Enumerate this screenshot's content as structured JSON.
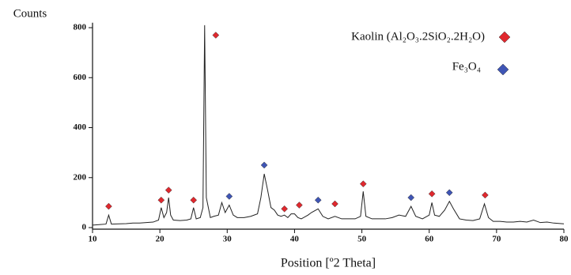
{
  "chart_data": {
    "type": "line",
    "y_label": "Counts",
    "x_label": "Position [º2 Theta]",
    "xlim": [
      10,
      80
    ],
    "xticks": [
      10,
      20,
      30,
      40,
      50,
      60,
      70,
      80
    ],
    "ylim": [
      0,
      820
    ],
    "yticks": [
      0,
      200,
      400,
      600,
      800
    ],
    "color": "#222222",
    "x": [
      10,
      11,
      12,
      12.4,
      12.8,
      14,
      15,
      16,
      17,
      18,
      19,
      19.8,
      20.2,
      20.6,
      21,
      21.3,
      21.6,
      22,
      23,
      24,
      24.6,
      25,
      25.4,
      26,
      26.4,
      26.65,
      26.9,
      27.5,
      28,
      28.7,
      29.2,
      29.7,
      30.3,
      30.9,
      31.5,
      32.5,
      33.5,
      34.5,
      35,
      35.5,
      36,
      36.5,
      37,
      37.5,
      38,
      38.5,
      39,
      39.5,
      40,
      40.5,
      41,
      42,
      42.5,
      43.5,
      44.2,
      45,
      46,
      47,
      48,
      49,
      49.8,
      50.2,
      50.6,
      51.5,
      52.5,
      53.5,
      54.5,
      55.5,
      56.5,
      57.3,
      58,
      59,
      60,
      60.4,
      60.8,
      61.5,
      62.3,
      63,
      63.6,
      64.5,
      65.5,
      66.5,
      67.5,
      68.2,
      68.8,
      69.5,
      70.5,
      71.5,
      72.5,
      73.5,
      74.5,
      75.5,
      76.5,
      77.5,
      78.5,
      80
    ],
    "values": [
      10,
      12,
      14,
      50,
      14,
      15,
      16,
      18,
      18,
      20,
      22,
      30,
      80,
      40,
      60,
      120,
      50,
      30,
      28,
      30,
      35,
      80,
      35,
      40,
      80,
      810,
      120,
      40,
      45,
      50,
      100,
      60,
      90,
      50,
      40,
      40,
      45,
      55,
      120,
      215,
      150,
      80,
      70,
      50,
      45,
      50,
      40,
      55,
      55,
      40,
      35,
      50,
      60,
      75,
      45,
      35,
      45,
      35,
      35,
      35,
      45,
      145,
      45,
      35,
      35,
      35,
      40,
      50,
      45,
      85,
      45,
      35,
      50,
      100,
      50,
      45,
      70,
      105,
      75,
      35,
      30,
      28,
      35,
      95,
      40,
      25,
      25,
      22,
      22,
      25,
      22,
      30,
      20,
      22,
      18,
      15
    ],
    "series": [
      {
        "name": "Kaolin (Al₂O₃.2SiO₂.2H₂O)",
        "color": "#e0282e",
        "x": [
          12.4,
          20.2,
          21.3,
          25,
          28.3,
          38.5,
          40.7,
          46,
          50.2,
          60.4,
          68.3
        ],
        "values": [
          85,
          110,
          150,
          110,
          770,
          75,
          90,
          95,
          175,
          135,
          130
        ]
      },
      {
        "name": "Fe₃O₄",
        "color": "#3f55b5",
        "x": [
          30.3,
          35.5,
          43.5,
          57.3,
          63
        ],
        "values": [
          125,
          250,
          110,
          120,
          140
        ]
      }
    ]
  }
}
